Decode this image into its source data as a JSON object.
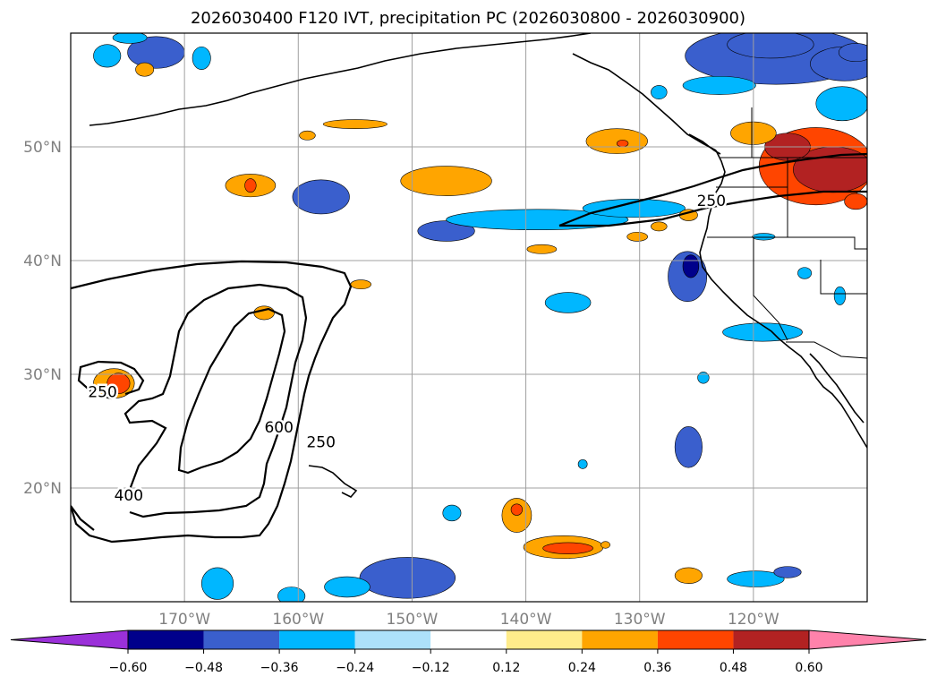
{
  "chart_data": {
    "type": "map",
    "title": "2026030400 F120 IVT, precipitation PC (2026030800 - 2026030900)",
    "lon_range": [
      -180,
      -110
    ],
    "lat_range": [
      10,
      60
    ],
    "lon_ticks": [
      -170,
      -160,
      -150,
      -140,
      -130,
      -120
    ],
    "lon_tick_labels": [
      "170°W",
      "160°W",
      "150°W",
      "140°W",
      "130°W",
      "120°W"
    ],
    "lat_ticks": [
      20,
      30,
      40,
      50
    ],
    "lat_tick_labels": [
      "20°N",
      "30°N",
      "40°N",
      "50°N"
    ],
    "gridlines": true,
    "ivt_contour_levels": [
      250,
      400,
      600
    ],
    "ivt_contour_labels": [
      {
        "text": "250",
        "lon": -177.2,
        "lat": 28.0
      },
      {
        "text": "250",
        "lon": -158.0,
        "lat": 23.6
      },
      {
        "text": "400",
        "lon": -174.9,
        "lat": 18.9
      },
      {
        "text": "600",
        "lon": -161.7,
        "lat": 24.9
      },
      {
        "text": "250",
        "lon": -123.7,
        "lat": 44.8
      }
    ],
    "colorbar": {
      "levels": [
        -0.6,
        -0.48,
        -0.36,
        -0.24,
        -0.12,
        0.12,
        0.24,
        0.36,
        0.48,
        0.6
      ],
      "tick_labels": [
        "−0.60",
        "−0.48",
        "−0.36",
        "−0.24",
        "−0.12",
        "0.12",
        "0.24",
        "0.36",
        "0.48",
        "0.60"
      ],
      "colors": [
        "#9b30d9",
        "#00008b",
        "#3a5fcd",
        "#00b7ff",
        "#ade1fa",
        "#ffffff",
        "#ffec8b",
        "#ffa500",
        "#ff4500",
        "#b22222",
        "#ff82ab"
      ],
      "extend": "both"
    },
    "precip_features": [
      {
        "lon": -158.0,
        "lat": 45.6,
        "rx": 2.5,
        "ry": 1.5,
        "value": -0.4
      },
      {
        "lon": -147.0,
        "lat": 42.6,
        "rx": 2.5,
        "ry": 0.9,
        "value": -0.4
      },
      {
        "lon": -139.0,
        "lat": 43.6,
        "rx": 8.0,
        "ry": 0.9,
        "value": -0.3
      },
      {
        "lon": -130.5,
        "lat": 44.6,
        "rx": 4.5,
        "ry": 0.8,
        "value": -0.3
      },
      {
        "lon": -125.8,
        "lat": 38.6,
        "rx": 1.7,
        "ry": 2.2,
        "value": -0.42
      },
      {
        "lon": -125.5,
        "lat": 39.5,
        "rx": 0.7,
        "ry": 1.0,
        "value": -0.54
      },
      {
        "lon": -136.3,
        "lat": 36.3,
        "rx": 2.0,
        "ry": 0.9,
        "value": -0.3
      },
      {
        "lon": -125.7,
        "lat": 23.6,
        "rx": 1.2,
        "ry": 1.8,
        "value": -0.4
      },
      {
        "lon": -150.4,
        "lat": 12.1,
        "rx": 4.2,
        "ry": 1.8,
        "value": -0.4
      },
      {
        "lon": -155.7,
        "lat": 11.3,
        "rx": 2.0,
        "ry": 0.9,
        "value": -0.3
      },
      {
        "lon": -146.5,
        "lat": 17.8,
        "rx": 0.8,
        "ry": 0.7,
        "value": -0.3
      },
      {
        "lon": -167.1,
        "lat": 11.6,
        "rx": 1.4,
        "ry": 1.4,
        "value": -0.3
      },
      {
        "lon": -160.6,
        "lat": 10.5,
        "rx": 1.2,
        "ry": 0.8,
        "value": -0.3
      },
      {
        "lon": -119.8,
        "lat": 12.0,
        "rx": 2.5,
        "ry": 0.7,
        "value": -0.3
      },
      {
        "lon": -117.0,
        "lat": 12.6,
        "rx": 1.2,
        "ry": 0.5,
        "value": -0.4
      },
      {
        "lon": -119.2,
        "lat": 33.7,
        "rx": 3.5,
        "ry": 0.8,
        "value": -0.3
      },
      {
        "lon": -119.1,
        "lat": 42.1,
        "rx": 1.0,
        "ry": 0.3,
        "value": -0.3
      },
      {
        "lon": -115.5,
        "lat": 38.9,
        "rx": 0.6,
        "ry": 0.5,
        "value": -0.3
      },
      {
        "lon": -112.4,
        "lat": 36.9,
        "rx": 0.5,
        "ry": 0.8,
        "value": -0.3
      },
      {
        "lon": -124.4,
        "lat": 29.7,
        "rx": 0.5,
        "ry": 0.5,
        "value": -0.3
      },
      {
        "lon": -135.0,
        "lat": 22.1,
        "rx": 0.4,
        "ry": 0.4,
        "value": -0.3
      },
      {
        "lon": -172.5,
        "lat": 58.3,
        "rx": 2.5,
        "ry": 1.4,
        "value": -0.4
      },
      {
        "lon": -176.8,
        "lat": 58.0,
        "rx": 1.2,
        "ry": 1.0,
        "value": -0.3
      },
      {
        "lon": -168.5,
        "lat": 57.8,
        "rx": 0.8,
        "ry": 1.0,
        "value": -0.3
      },
      {
        "lon": -174.8,
        "lat": 59.6,
        "rx": 1.5,
        "ry": 0.5,
        "value": -0.3
      },
      {
        "lon": -128.3,
        "lat": 54.8,
        "rx": 0.7,
        "ry": 0.6,
        "value": -0.3
      },
      {
        "lon": -118.0,
        "lat": 58.0,
        "rx": 8.0,
        "ry": 2.5,
        "value": -0.4
      },
      {
        "lon": -123.0,
        "lat": 55.4,
        "rx": 3.2,
        "ry": 0.8,
        "value": -0.3
      },
      {
        "lon": -112.2,
        "lat": 53.8,
        "rx": 2.3,
        "ry": 1.5,
        "value": -0.3
      },
      {
        "lon": -112.0,
        "lat": 57.3,
        "rx": 3.0,
        "ry": 1.5,
        "value": -0.42
      },
      {
        "lon": -118.5,
        "lat": 59.0,
        "rx": 3.8,
        "ry": 1.2,
        "value": -0.42
      },
      {
        "lon": -111.0,
        "lat": 58.3,
        "rx": 1.5,
        "ry": 0.8,
        "value": -0.42
      },
      {
        "lon": -147.0,
        "lat": 47.0,
        "rx": 4.0,
        "ry": 1.3,
        "value": 0.3
      },
      {
        "lon": -164.2,
        "lat": 46.6,
        "rx": 2.2,
        "ry": 1.0,
        "value": 0.3
      },
      {
        "lon": -164.2,
        "lat": 46.6,
        "rx": 0.5,
        "ry": 0.6,
        "value": 0.4
      },
      {
        "lon": -163.0,
        "lat": 35.4,
        "rx": 0.9,
        "ry": 0.6,
        "value": 0.3
      },
      {
        "lon": -176.2,
        "lat": 29.2,
        "rx": 1.8,
        "ry": 1.3,
        "value": 0.3
      },
      {
        "lon": -175.8,
        "lat": 29.2,
        "rx": 1.0,
        "ry": 0.9,
        "value": 0.42
      },
      {
        "lon": -173.5,
        "lat": 56.8,
        "rx": 0.8,
        "ry": 0.6,
        "value": 0.3
      },
      {
        "lon": -155.0,
        "lat": 52.0,
        "rx": 2.8,
        "ry": 0.4,
        "value": 0.3
      },
      {
        "lon": -159.2,
        "lat": 51.0,
        "rx": 0.7,
        "ry": 0.4,
        "value": 0.3
      },
      {
        "lon": -154.5,
        "lat": 37.9,
        "rx": 0.9,
        "ry": 0.4,
        "value": 0.3
      },
      {
        "lon": -140.8,
        "lat": 17.6,
        "rx": 1.3,
        "ry": 1.5,
        "value": 0.3
      },
      {
        "lon": -140.8,
        "lat": 18.1,
        "rx": 0.5,
        "ry": 0.5,
        "value": 0.4
      },
      {
        "lon": -136.7,
        "lat": 14.8,
        "rx": 3.5,
        "ry": 1.0,
        "value": 0.3
      },
      {
        "lon": -136.3,
        "lat": 14.7,
        "rx": 2.2,
        "ry": 0.5,
        "value": 0.4
      },
      {
        "lon": -133.0,
        "lat": 15.0,
        "rx": 0.4,
        "ry": 0.3,
        "value": 0.3
      },
      {
        "lon": -125.7,
        "lat": 12.3,
        "rx": 1.2,
        "ry": 0.7,
        "value": 0.3
      },
      {
        "lon": -132.0,
        "lat": 50.5,
        "rx": 2.7,
        "ry": 1.1,
        "value": 0.3
      },
      {
        "lon": -131.5,
        "lat": 50.3,
        "rx": 0.5,
        "ry": 0.3,
        "value": 0.4
      },
      {
        "lon": -138.6,
        "lat": 41.0,
        "rx": 1.3,
        "ry": 0.4,
        "value": 0.3
      },
      {
        "lon": -130.2,
        "lat": 42.1,
        "rx": 0.9,
        "ry": 0.4,
        "value": 0.3
      },
      {
        "lon": -128.3,
        "lat": 43.0,
        "rx": 0.7,
        "ry": 0.4,
        "value": 0.3
      },
      {
        "lon": -125.7,
        "lat": 44.0,
        "rx": 0.8,
        "ry": 0.5,
        "value": 0.3
      },
      {
        "lon": -114.5,
        "lat": 48.3,
        "rx": 5.0,
        "ry": 3.4,
        "value": 0.4
      },
      {
        "lon": -113.0,
        "lat": 48.0,
        "rx": 3.5,
        "ry": 2.0,
        "value": 0.54
      },
      {
        "lon": -117.0,
        "lat": 50.0,
        "rx": 2.0,
        "ry": 1.2,
        "value": 0.54
      },
      {
        "lon": -111.0,
        "lat": 45.2,
        "rx": 1.0,
        "ry": 0.7,
        "value": 0.4
      },
      {
        "lon": -120.0,
        "lat": 51.2,
        "rx": 2.0,
        "ry": 1.0,
        "value": 0.3
      }
    ]
  }
}
